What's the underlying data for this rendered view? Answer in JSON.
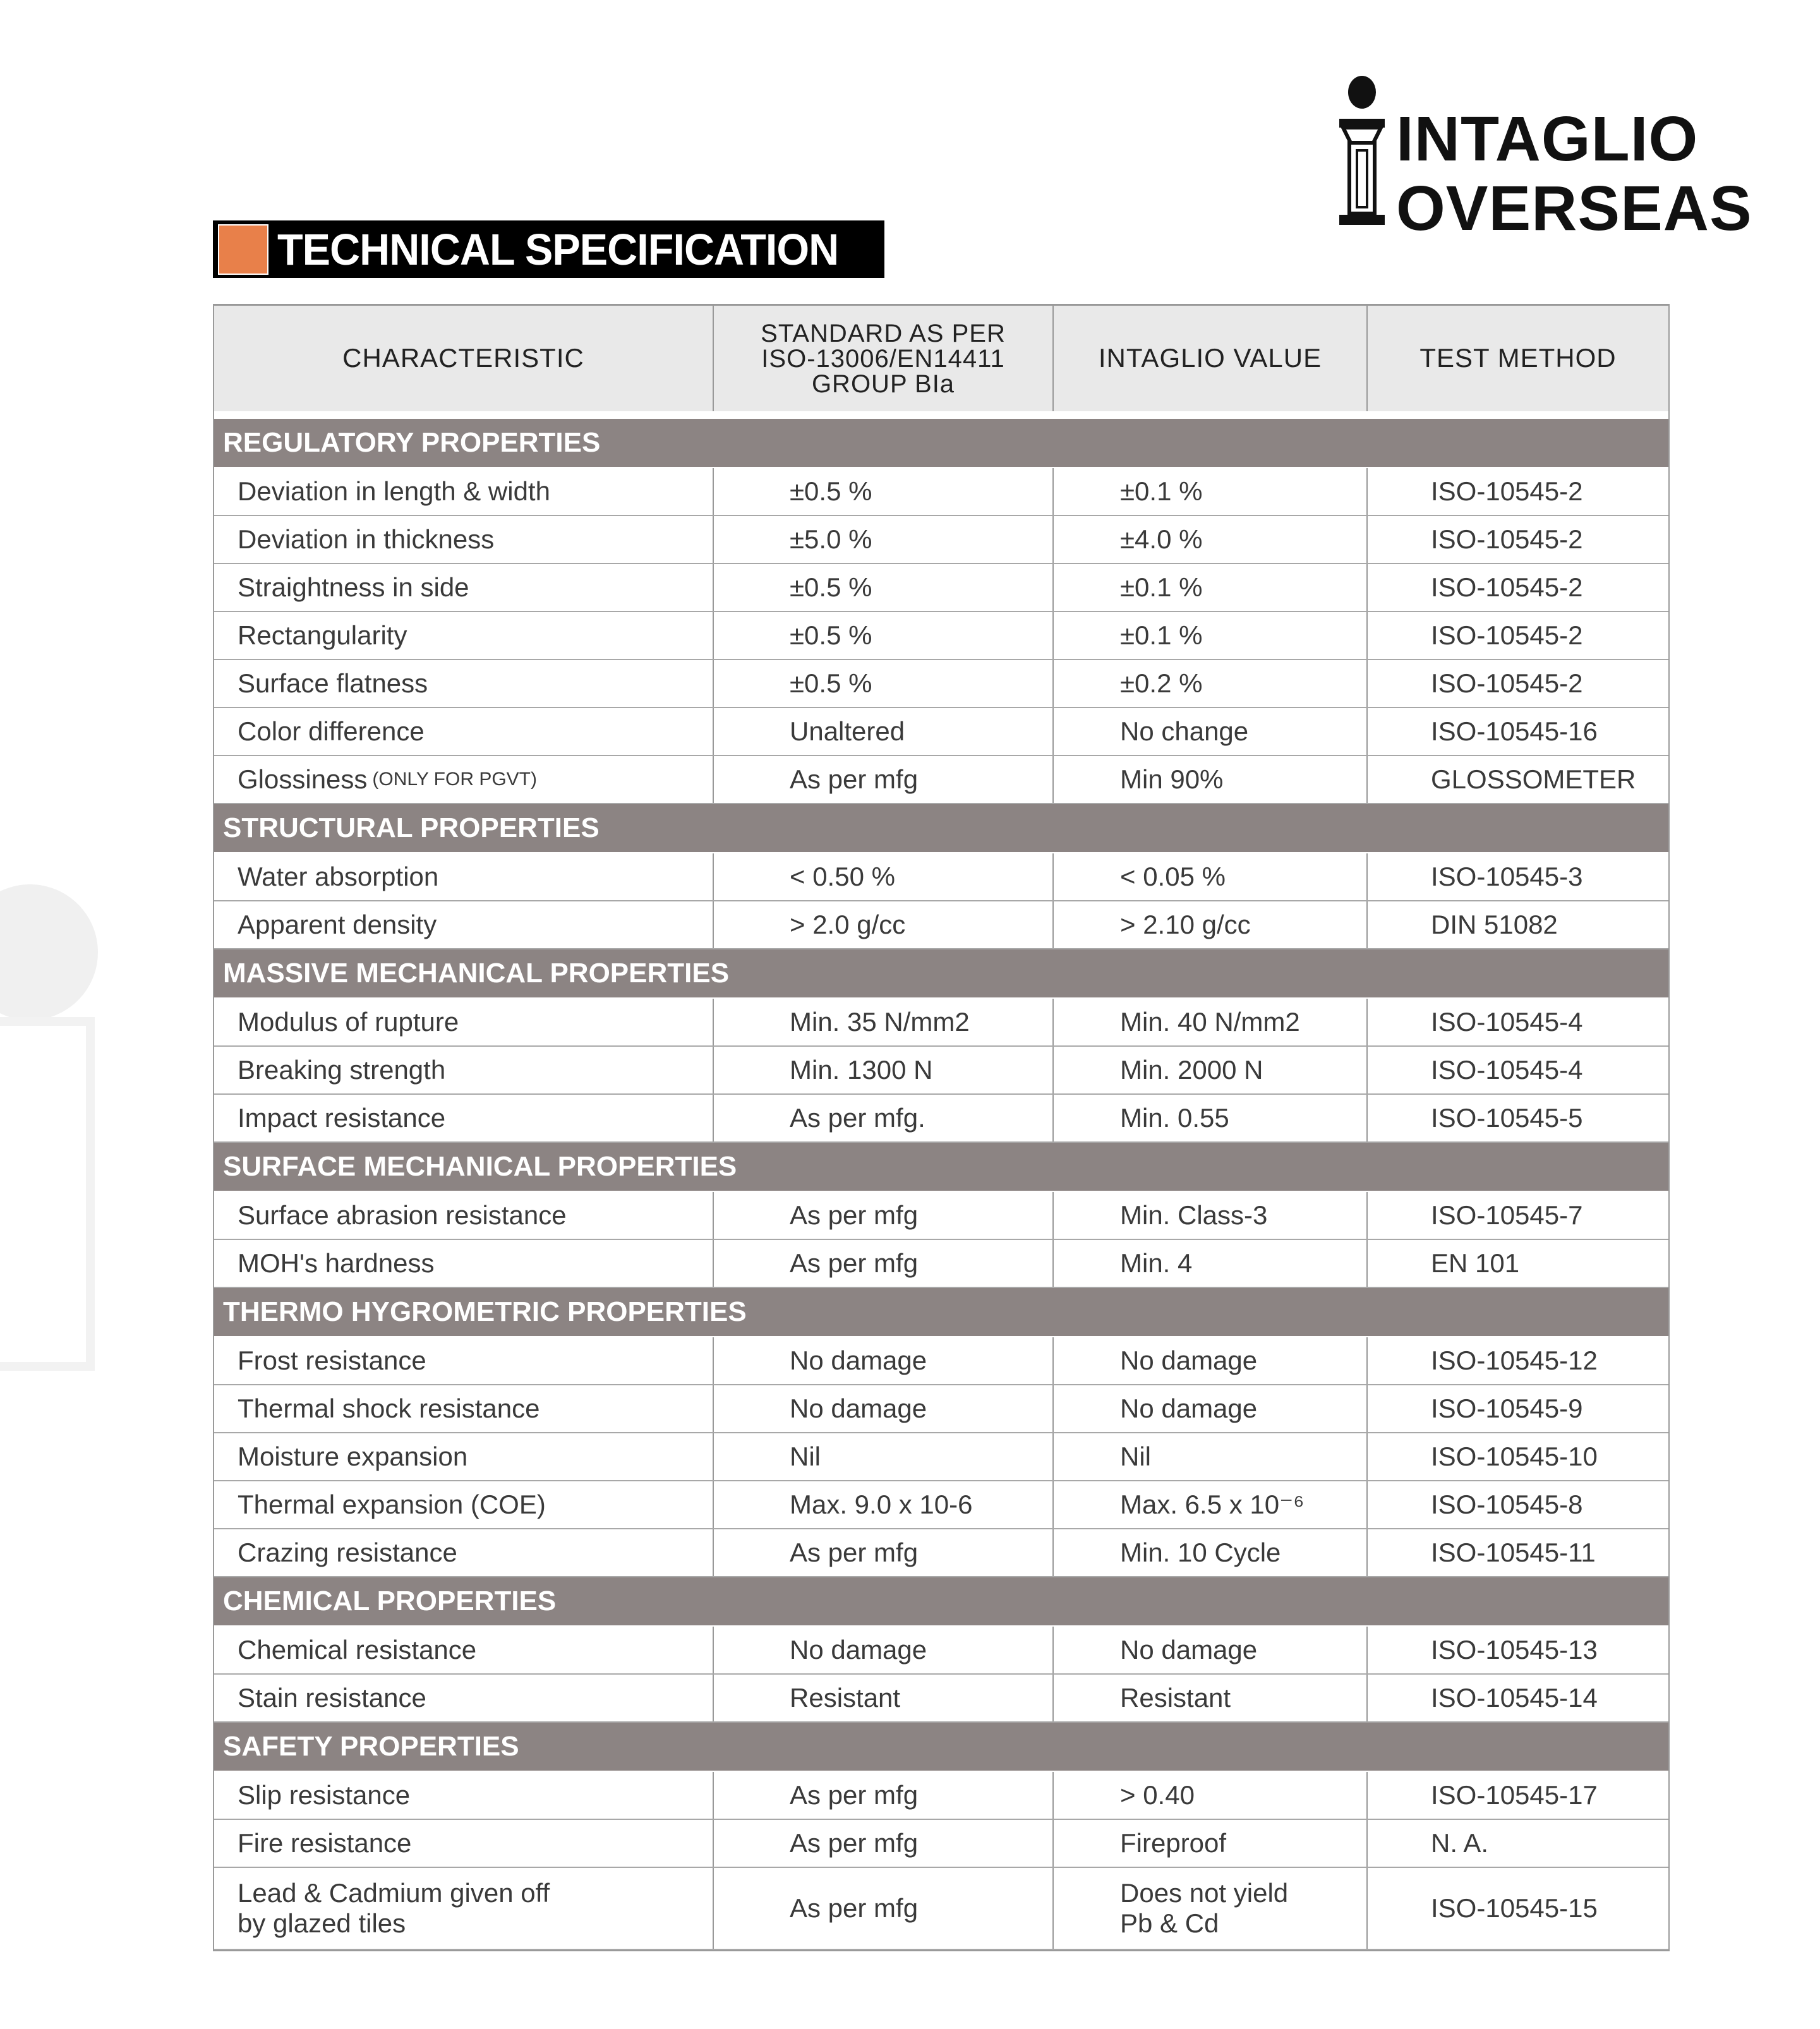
{
  "title": "TECHNICAL SPECIFICATION",
  "accent_color": "#e8804a",
  "band_color": "#8c8483",
  "logo": {
    "line1": "INTAGLIO",
    "line2": "OVERSEAS",
    "icon": "pillar-i-logo-icon"
  },
  "header": [
    "CHARACTERISTIC",
    "STANDARD AS PER\nISO-13006/EN14411\nGROUP BIa",
    "INTAGLIO VALUE",
    "TEST METHOD"
  ],
  "sections": [
    {
      "name": "REGULATORY PROPERTIES",
      "rows": [
        [
          "Deviation in length & width",
          "±0.5 %",
          "±0.1 %",
          "ISO-10545-2"
        ],
        [
          "Deviation in thickness",
          "±5.0 %",
          "±4.0 %",
          "ISO-10545-2"
        ],
        [
          "Straightness in side",
          "±0.5 %",
          "±0.1 %",
          "ISO-10545-2"
        ],
        [
          "Rectangularity",
          "±0.5 %",
          "±0.1 %",
          "ISO-10545-2"
        ],
        [
          "Surface flatness",
          "±0.5 %",
          "±0.2 %",
          "ISO-10545-2"
        ],
        [
          "Color difference",
          "Unaltered",
          "No change",
          "ISO-10545-16"
        ],
        [
          "Glossiness",
          "As per mfg",
          "Min 90%",
          "GLOSSOMETER"
        ]
      ],
      "note": "(ONLY FOR PGVT)"
    },
    {
      "name": "STRUCTURAL PROPERTIES",
      "rows": [
        [
          "Water absorption",
          "< 0.50 %",
          "< 0.05 %",
          "ISO-10545-3"
        ],
        [
          "Apparent density",
          "> 2.0 g/cc",
          "> 2.10 g/cc",
          "DIN 51082"
        ]
      ]
    },
    {
      "name": "MASSIVE MECHANICAL  PROPERTIES",
      "rows": [
        [
          "Modulus of rupture",
          "Min. 35 N/mm2",
          "Min. 40 N/mm2",
          "ISO-10545-4"
        ],
        [
          "Breaking strength",
          "Min. 1300 N",
          "Min. 2000 N",
          "ISO-10545-4"
        ],
        [
          "Impact resistance",
          "As per mfg.",
          "Min. 0.55",
          "ISO-10545-5"
        ]
      ]
    },
    {
      "name": "SURFACE  MECHANICAL  PROPERTIES",
      "rows": [
        [
          "Surface abrasion resistance",
          "As per mfg",
          "Min. Class-3",
          "ISO-10545-7"
        ],
        [
          "MOH's hardness",
          "As per mfg",
          "Min. 4",
          "EN 101"
        ]
      ]
    },
    {
      "name": "THERMO HYGROMETRIC  PROPERTIES",
      "rows": [
        [
          "Frost resistance",
          "No damage",
          "No damage",
          "ISO-10545-12"
        ],
        [
          "Thermal shock resistance",
          "No damage",
          "No damage",
          "ISO-10545-9"
        ],
        [
          "Moisture expansion",
          "Nil",
          "Nil",
          "ISO-10545-10"
        ],
        [
          "Thermal expansion (COE)",
          "Max. 9.0 x 10-6",
          "Max. 6.5 x 10⁻⁶",
          "ISO-10545-8"
        ],
        [
          "Crazing resistance",
          "As per mfg",
          "Min. 10 Cycle",
          "ISO-10545-11"
        ]
      ]
    },
    {
      "name": "CHEMICAL PROPERTIES",
      "rows": [
        [
          "Chemical resistance",
          "No damage",
          "No damage",
          "ISO-10545-13"
        ],
        [
          "Stain resistance",
          "Resistant",
          "Resistant",
          "ISO-10545-14"
        ]
      ]
    },
    {
      "name": "SAFETY PROPERTIES",
      "rows": [
        [
          "Slip resistance",
          "As per mfg",
          "> 0.40",
          "ISO-10545-17"
        ],
        [
          "Fire resistance",
          "As per mfg",
          "Fireproof",
          "N. A."
        ],
        [
          "Lead & Cadmium given off\nby glazed tiles",
          "As per mfg",
          "Does not yield\nPb & Cd",
          "ISO-10545-15"
        ]
      ]
    }
  ]
}
